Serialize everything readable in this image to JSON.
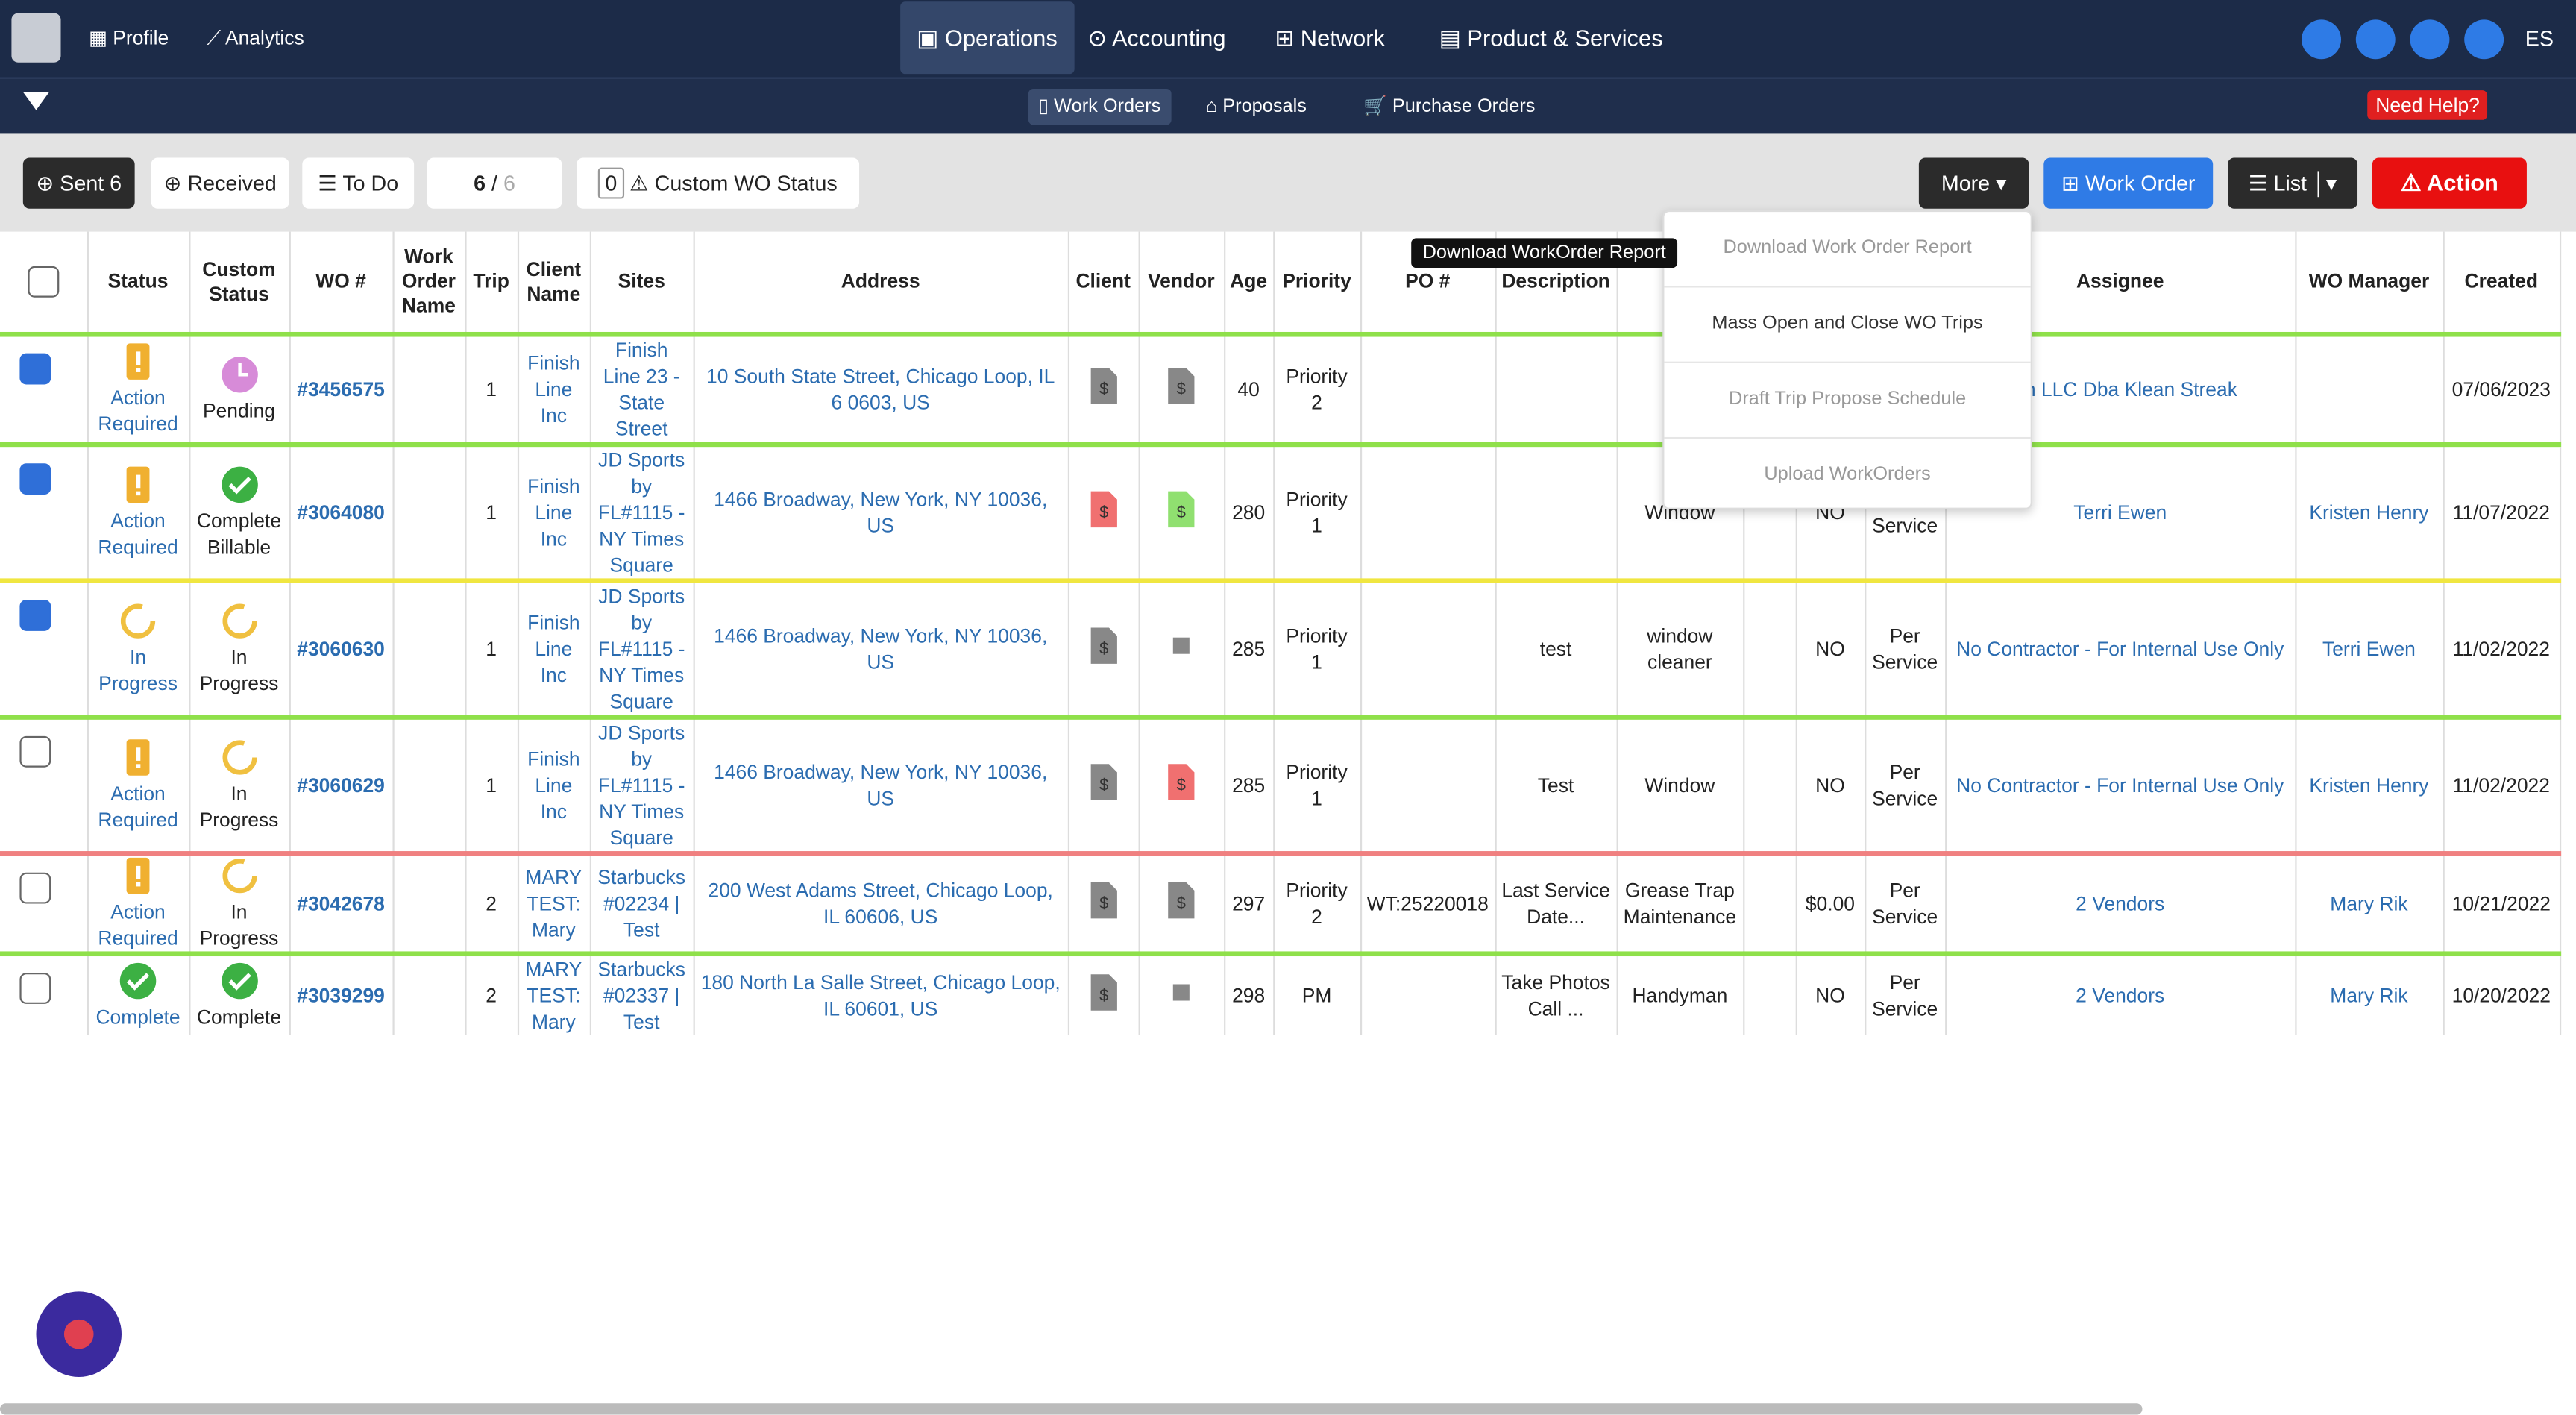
{
  "nav": {
    "items": [
      "Profile",
      "Analytics",
      "Operations",
      "Accounting",
      "Network",
      "Product & Services"
    ],
    "active": 2,
    "user": "ES"
  },
  "subnav": {
    "items": [
      "Work Orders",
      "Proposals",
      "Purchase Orders"
    ],
    "active": 0,
    "help": "Need Help?"
  },
  "toolbar": {
    "sent": "Sent 6",
    "received": "Received",
    "todo": "To Do",
    "page_current": "6",
    "page_sep": "/",
    "page_total": "6",
    "custom_count": "0",
    "custom_label": "Custom WO Status",
    "more": "More",
    "work_order": "Work Order",
    "list": "List",
    "action": "Action"
  },
  "tooltip": "Download WorkOrder Report",
  "menu": [
    "Download Work Order Report",
    "Mass Open and Close WO Trips",
    "Draft Trip Propose Schedule",
    "Upload WorkOrders"
  ],
  "table": {
    "headers": [
      null,
      "Status",
      "Custom Status",
      "WO #",
      "Work Order Name",
      "Trip",
      "Client Name",
      "Sites",
      "Address",
      "Client",
      "Vendor",
      "Age",
      "Priority",
      "PO #",
      "Description",
      null,
      null,
      null,
      null,
      "Assignee",
      "WO Manager",
      "Created"
    ],
    "rows": [
      {
        "checked": true,
        "border": "#8fe04a",
        "status": "Action Required",
        "status_icon": "warning",
        "custom_status": "Pending",
        "custom_icon": "clock",
        "wo": "#3456575",
        "name": null,
        "trip": "1",
        "client_name": "Finish Line Inc",
        "site": "Finish Line 23 - State Street",
        "address": "10 South State Street, Chicago Loop, IL 6 0603, US",
        "client_doc": "gray",
        "vendor_doc": "gray",
        "age": "40",
        "priority": "Priority 2",
        "po": null,
        "description": null,
        "trade": null,
        "extra": null,
        "nte": null,
        "pay": null,
        "assignee": "Mtn LLC Dba Klean Streak",
        "manager": null,
        "created": "07/06/2023"
      },
      {
        "checked": true,
        "border": "#8fe04a",
        "status": "Action Required",
        "status_icon": "warning",
        "custom_status": "Complete Billable",
        "custom_icon": "check",
        "wo": "#3064080",
        "name": null,
        "trip": "1",
        "client_name": "Finish Line Inc",
        "site": "JD Sports by FL#1115 - NY Times Square",
        "address": "1466 Broadway, New York, NY 10036, US",
        "client_doc": "red",
        "vendor_doc": "green",
        "age": "280",
        "priority": "Priority 1",
        "po": null,
        "description": null,
        "trade": "Window",
        "extra": null,
        "nte": "NO",
        "pay": "Per Service",
        "assignee": "Terri Ewen",
        "manager": "Kristen Henry",
        "created": "11/07/2022"
      },
      {
        "checked": true,
        "border": "#f0e640",
        "status": "In Progress",
        "status_icon": "progress",
        "custom_status": "In Progress",
        "custom_icon": "progress",
        "wo": "#3060630",
        "name": null,
        "trip": "1",
        "client_name": "Finish Line Inc",
        "site": "JD Sports by FL#1115 - NY Times Square",
        "address": "1466 Broadway, New York, NY 10036, US",
        "client_doc": "gray",
        "vendor_doc": "square",
        "age": "285",
        "priority": "Priority 1",
        "po": null,
        "description": "test",
        "trade": "window cleaner",
        "extra": null,
        "nte": "NO",
        "pay": "Per Service",
        "assignee": "No Contractor - For Internal Use Only",
        "manager": "Terri Ewen",
        "created": "11/02/2022"
      },
      {
        "checked": false,
        "border": "#8fe04a",
        "status": "Action Required",
        "status_icon": "warning",
        "custom_status": "In Progress",
        "custom_icon": "progress",
        "wo": "#3060629",
        "name": null,
        "trip": "1",
        "client_name": "Finish Line Inc",
        "site": "JD Sports by FL#1115 - NY Times Square",
        "address": "1466 Broadway, New York, NY 10036, US",
        "client_doc": "gray",
        "vendor_doc": "red",
        "age": "285",
        "priority": "Priority 1",
        "po": null,
        "description": "Test",
        "trade": "Window",
        "extra": null,
        "nte": "NO",
        "pay": "Per Service",
        "assignee": "No Contractor - For Internal Use Only",
        "manager": "Kristen Henry",
        "created": "11/02/2022"
      },
      {
        "checked": false,
        "border": "#f08080",
        "status": "Action Required",
        "status_icon": "warning",
        "custom_status": "In Progress",
        "custom_icon": "progress",
        "wo": "#3042678",
        "name": null,
        "trip": "2",
        "client_name": "MARY TEST: Mary",
        "site": "Starbucks #02234 | Test",
        "address": "200 West Adams Street, Chicago Loop, IL 60606, US",
        "client_doc": "gray",
        "vendor_doc": "gray",
        "age": "297",
        "priority": "Priority 2",
        "po": "WT:25220018",
        "description": "Last Service Date...",
        "trade": "Grease Trap Maintenance",
        "extra": null,
        "nte": "$0.00",
        "pay": "Per Service",
        "assignee": "2 Vendors",
        "manager": "Mary Rik",
        "created": "10/21/2022"
      },
      {
        "checked": false,
        "border": "#8fe04a",
        "status": "Complete",
        "status_icon": "check",
        "custom_status": "Complete",
        "custom_icon": "check",
        "wo": "#3039299",
        "name": null,
        "trip": "2",
        "client_name": "MARY TEST: Mary",
        "site": "Starbucks #02337 | Test",
        "address": "180 North La Salle Street, Chicago Loop, IL 60601, US",
        "client_doc": "gray",
        "vendor_doc": "square",
        "age": "298",
        "priority": "PM",
        "po": null,
        "description": "Take Photos Call ...",
        "trade": "Handyman",
        "extra": null,
        "nte": "NO",
        "pay": "Per Service",
        "assignee": "2 Vendors",
        "manager": "Mary Rik",
        "created": "10/20/2022"
      }
    ]
  }
}
